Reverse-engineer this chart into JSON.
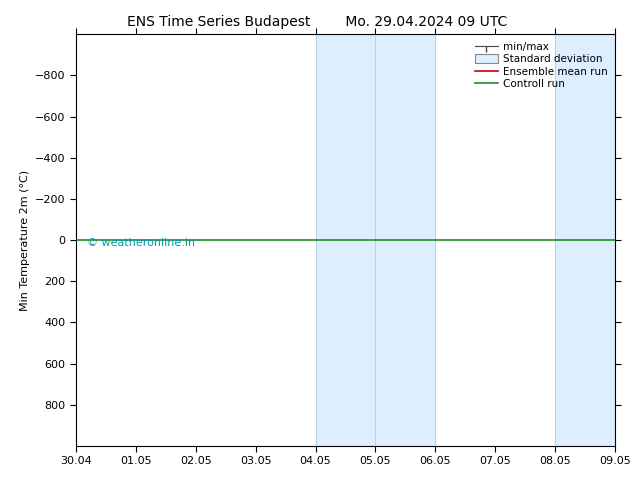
{
  "title_left": "ENS Time Series Budapest",
  "title_right": "Mo. 29.04.2024 09 UTC",
  "ylabel": "Min Temperature 2m (°C)",
  "ylim_bottom": 1000,
  "ylim_top": -1000,
  "yticks": [
    -800,
    -600,
    -400,
    -200,
    0,
    200,
    400,
    600,
    800
  ],
  "xtick_labels": [
    "30.04",
    "01.05",
    "02.05",
    "03.05",
    "04.05",
    "05.05",
    "06.05",
    "07.05",
    "08.05",
    "09.05"
  ],
  "xmin": 0,
  "xmax": 9,
  "shaded_bands": [
    {
      "xstart": 4,
      "xend": 5,
      "color": "#ddeeff"
    },
    {
      "xstart": 5,
      "xend": 6,
      "color": "#ddeeff"
    },
    {
      "xstart": 8,
      "xend": 9,
      "color": "#ddeeff"
    }
  ],
  "green_line_y": 0,
  "green_line_color": "#228B22",
  "red_line_color": "#cc0000",
  "watermark_text": "© weatheronline.in",
  "watermark_color": "#0099bb",
  "background_color": "#ffffff",
  "plot_bg_color": "#ffffff",
  "title_fontsize": 10,
  "axis_label_fontsize": 8,
  "tick_fontsize": 8,
  "legend_fontsize": 7.5
}
